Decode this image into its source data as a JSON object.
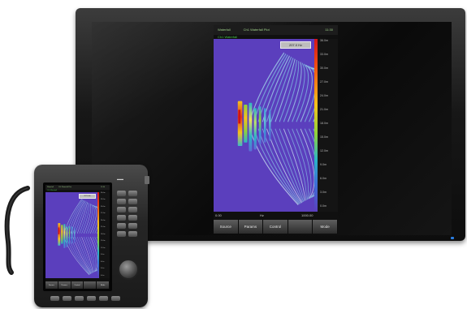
{
  "status_bar": {
    "left_text": "Waterfall",
    "center_text": "Ch1 Waterfall Plot",
    "right_text": "11:30"
  },
  "sub_label": "Ch1 Waterfall",
  "cursor_readout": "207.0 Hz",
  "scale_ticks": [
    "36.0m",
    "33.0m",
    "30.0m",
    "27.0m",
    "24.0m",
    "21.0m",
    "18.0m",
    "15.0m",
    "12.0m",
    "9.0m",
    "6.0m",
    "3.0m",
    "0.0m"
  ],
  "x_axis": {
    "min": "0.00",
    "unit": "Hz",
    "max": "1000.00"
  },
  "softkeys": [
    "Source",
    "Params",
    "Control",
    "",
    "Mode"
  ],
  "colors": {
    "plot_background": "#5b3fbd",
    "accent_green": "#46c24a",
    "device_body": "#262626"
  }
}
